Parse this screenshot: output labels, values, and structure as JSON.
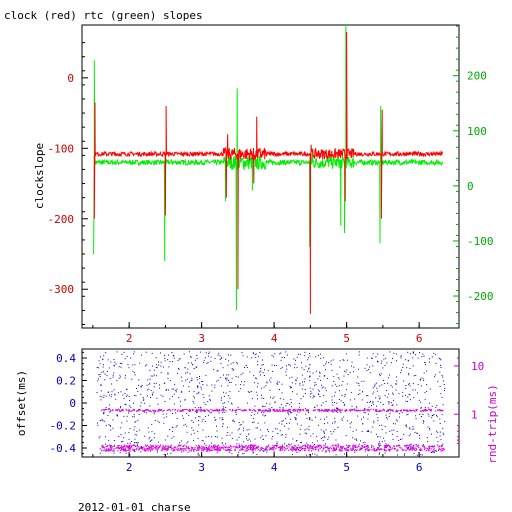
{
  "title": "clock (red) rtc (green) slopes",
  "footer": "2012-01-01 charse",
  "colors": {
    "clock": "#ff0000",
    "rtc": "#00ee00",
    "offset": "#0000cc",
    "roundtrip": "#dd00dd",
    "axis": "#000000",
    "left_ticks_top": "#cc0000",
    "right_ticks_top": "#00aa00",
    "left_ticks_bottom": "#0000cc",
    "right_ticks_bottom": "#cc00cc"
  },
  "chart_data": [
    {
      "type": "line",
      "title": "clock (red) rtc (green) slopes",
      "ylabel": "clockslope",
      "xlim": [
        1.35,
        6.55
      ],
      "ylim": [
        -355,
        75
      ],
      "y2lim": [
        -258,
        292
      ],
      "x_ticks": [
        "2",
        "3",
        "4",
        "5",
        "6"
      ],
      "y_ticks": [
        "0",
        "-100",
        "-200",
        "-300"
      ],
      "y2_ticks": [
        "200",
        "100",
        "0",
        "-100",
        "-200"
      ],
      "series": [
        {
          "name": "clock",
          "baseline": -108,
          "spikes": [
            [
              1.52,
              -200
            ],
            [
              1.53,
              -35
            ],
            [
              2.5,
              -195
            ],
            [
              2.51,
              -40
            ],
            [
              3.34,
              -170
            ],
            [
              3.36,
              -80
            ],
            [
              3.5,
              -300
            ],
            [
              3.51,
              -115
            ],
            [
              3.72,
              -150
            ],
            [
              3.76,
              -55
            ],
            [
              4.5,
              -335
            ],
            [
              4.51,
              -95
            ],
            [
              4.98,
              -175
            ],
            [
              5.0,
              65
            ],
            [
              5.48,
              -200
            ],
            [
              5.49,
              -45
            ]
          ]
        },
        {
          "name": "rtc",
          "baseline": -120,
          "spikes": [
            [
              1.51,
              -250
            ],
            [
              1.52,
              25
            ],
            [
              2.49,
              -260
            ],
            [
              3.33,
              -175
            ],
            [
              3.48,
              -330
            ],
            [
              3.49,
              -15
            ],
            [
              3.7,
              -160
            ],
            [
              4.49,
              -240
            ],
            [
              4.53,
              -100
            ],
            [
              4.92,
              -210
            ],
            [
              4.97,
              -220
            ],
            [
              4.99,
              75
            ],
            [
              5.46,
              -235
            ],
            [
              5.47,
              -40
            ]
          ]
        }
      ]
    },
    {
      "type": "scatter",
      "ylabel": "offset(ms)",
      "y2label": "rnd-trip(ms)",
      "xlim": [
        1.35,
        6.55
      ],
      "ylim": [
        -0.48,
        0.48
      ],
      "y_ticks": [
        "0.4",
        "0.2",
        "0",
        "-0.2",
        "-0.4"
      ],
      "y2_ticks": [
        "10",
        "1"
      ],
      "y2_scale": "log",
      "x_ticks": [
        "2",
        "3",
        "4",
        "5",
        "6"
      ],
      "series": [
        {
          "name": "offset",
          "distribution": "uniform",
          "range": [
            -0.46,
            0.46
          ]
        },
        {
          "name": "rnd-trip",
          "bands": [
            0.9,
            0.45
          ]
        }
      ]
    }
  ]
}
